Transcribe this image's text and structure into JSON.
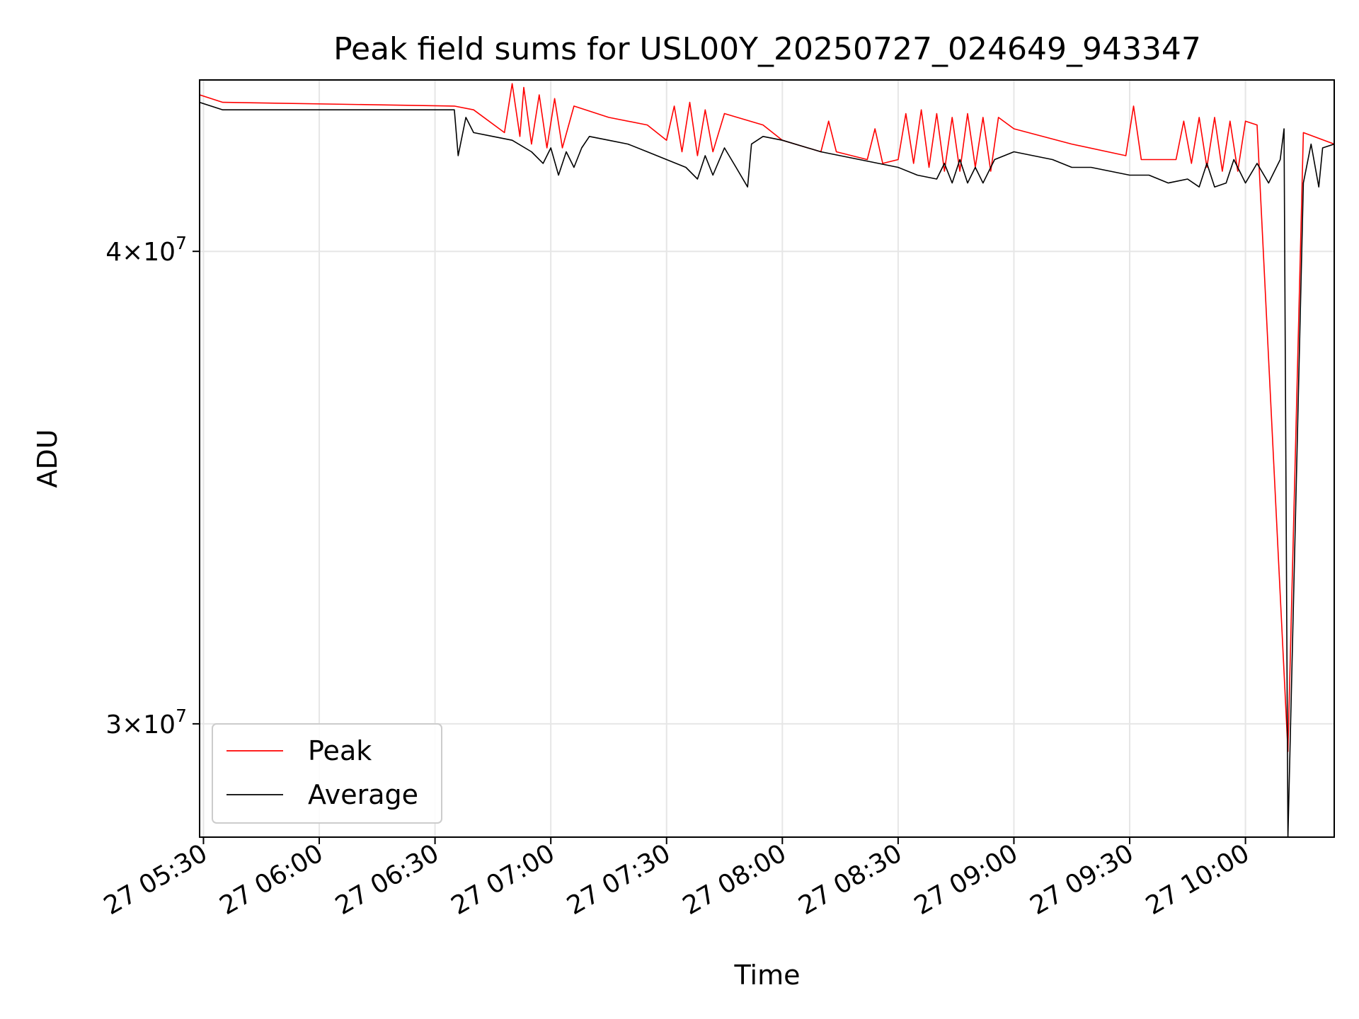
{
  "chart_data": {
    "type": "line",
    "title": "Peak field sums for USL00Y_20250727_024649_943347",
    "xlabel": "Time",
    "ylabel": "ADU",
    "y_scale": "log",
    "xlim": [
      "27 05:29",
      "27 10:23"
    ],
    "ylim": [
      28000000,
      44400000
    ],
    "x_ticks": [
      {
        "time": "27 05:30",
        "label": "27 05:30"
      },
      {
        "time": "27 06:00",
        "label": "27 06:00"
      },
      {
        "time": "27 06:30",
        "label": "27 06:30"
      },
      {
        "time": "27 07:00",
        "label": "27 07:00"
      },
      {
        "time": "27 07:30",
        "label": "27 07:30"
      },
      {
        "time": "27 08:00",
        "label": "27 08:00"
      },
      {
        "time": "27 08:30",
        "label": "27 08:30"
      },
      {
        "time": "27 09:00",
        "label": "27 09:00"
      },
      {
        "time": "27 09:30",
        "label": "27 09:30"
      },
      {
        "time": "27 10:00",
        "label": "27 10:00"
      }
    ],
    "y_ticks": [
      {
        "value": 40000000,
        "mant": "4",
        "exp": "7"
      },
      {
        "value": 30000000,
        "mant": "3",
        "exp": "7"
      }
    ],
    "grid": true,
    "legend_position": "lower-left",
    "legend": [
      {
        "label": "Peak",
        "color": "#ff0000"
      },
      {
        "label": "Average",
        "color": "#000000"
      }
    ],
    "series": [
      {
        "name": "Peak",
        "color": "#ff0000",
        "points": [
          [
            "27 05:29",
            44000000
          ],
          [
            "27 05:35",
            43800000
          ],
          [
            "27 06:35",
            43700000
          ],
          [
            "27 06:40",
            43600000
          ],
          [
            "27 06:48",
            43000000
          ],
          [
            "27 06:50",
            44300000
          ],
          [
            "27 06:52",
            42900000
          ],
          [
            "27 06:53",
            44200000
          ],
          [
            "27 06:55",
            42700000
          ],
          [
            "27 06:57",
            44000000
          ],
          [
            "27 06:59",
            42600000
          ],
          [
            "27 07:01",
            43900000
          ],
          [
            "27 07:03",
            42600000
          ],
          [
            "27 07:06",
            43700000
          ],
          [
            "27 07:15",
            43400000
          ],
          [
            "27 07:25",
            43200000
          ],
          [
            "27 07:30",
            42800000
          ],
          [
            "27 07:32",
            43700000
          ],
          [
            "27 07:34",
            42500000
          ],
          [
            "27 07:36",
            43800000
          ],
          [
            "27 07:38",
            42400000
          ],
          [
            "27 07:40",
            43600000
          ],
          [
            "27 07:42",
            42500000
          ],
          [
            "27 07:45",
            43500000
          ],
          [
            "27 07:55",
            43200000
          ],
          [
            "27 08:00",
            42800000
          ],
          [
            "27 08:10",
            42500000
          ],
          [
            "27 08:12",
            43300000
          ],
          [
            "27 08:14",
            42500000
          ],
          [
            "27 08:22",
            42300000
          ],
          [
            "27 08:24",
            43100000
          ],
          [
            "27 08:26",
            42200000
          ],
          [
            "27 08:30",
            42300000
          ],
          [
            "27 08:32",
            43500000
          ],
          [
            "27 08:34",
            42200000
          ],
          [
            "27 08:36",
            43600000
          ],
          [
            "27 08:38",
            42100000
          ],
          [
            "27 08:40",
            43500000
          ],
          [
            "27 08:42",
            42000000
          ],
          [
            "27 08:44",
            43400000
          ],
          [
            "27 08:46",
            42000000
          ],
          [
            "27 08:48",
            43500000
          ],
          [
            "27 08:50",
            42100000
          ],
          [
            "27 08:52",
            43400000
          ],
          [
            "27 08:54",
            42000000
          ],
          [
            "27 08:56",
            43400000
          ],
          [
            "27 09:00",
            43100000
          ],
          [
            "27 09:15",
            42700000
          ],
          [
            "27 09:29",
            42400000
          ],
          [
            "27 09:31",
            43700000
          ],
          [
            "27 09:33",
            42300000
          ],
          [
            "27 09:42",
            42300000
          ],
          [
            "27 09:44",
            43300000
          ],
          [
            "27 09:46",
            42200000
          ],
          [
            "27 09:48",
            43400000
          ],
          [
            "27 09:50",
            42100000
          ],
          [
            "27 09:52",
            43400000
          ],
          [
            "27 09:54",
            42000000
          ],
          [
            "27 09:56",
            43300000
          ],
          [
            "27 09:58",
            42000000
          ],
          [
            "27 10:00",
            43300000
          ],
          [
            "27 10:03",
            43200000
          ],
          [
            "27 10:11",
            29500000
          ],
          [
            "27 10:15",
            43000000
          ],
          [
            "27 10:23",
            42700000
          ]
        ]
      },
      {
        "name": "Average",
        "color": "#000000",
        "points": [
          [
            "27 05:29",
            43800000
          ],
          [
            "27 05:35",
            43600000
          ],
          [
            "27 06:35",
            43600000
          ],
          [
            "27 06:36",
            42400000
          ],
          [
            "27 06:38",
            43400000
          ],
          [
            "27 06:40",
            43000000
          ],
          [
            "27 06:45",
            42900000
          ],
          [
            "27 06:50",
            42800000
          ],
          [
            "27 06:55",
            42500000
          ],
          [
            "27 06:58",
            42200000
          ],
          [
            "27 07:00",
            42600000
          ],
          [
            "27 07:02",
            41900000
          ],
          [
            "27 07:04",
            42500000
          ],
          [
            "27 07:06",
            42100000
          ],
          [
            "27 07:08",
            42600000
          ],
          [
            "27 07:10",
            42900000
          ],
          [
            "27 07:15",
            42800000
          ],
          [
            "27 07:20",
            42700000
          ],
          [
            "27 07:25",
            42500000
          ],
          [
            "27 07:30",
            42300000
          ],
          [
            "27 07:35",
            42100000
          ],
          [
            "27 07:38",
            41800000
          ],
          [
            "27 07:40",
            42400000
          ],
          [
            "27 07:42",
            41900000
          ],
          [
            "27 07:45",
            42600000
          ],
          [
            "27 07:48",
            42100000
          ],
          [
            "27 07:51",
            41600000
          ],
          [
            "27 07:52",
            42700000
          ],
          [
            "27 07:55",
            42900000
          ],
          [
            "27 08:00",
            42800000
          ],
          [
            "27 08:10",
            42500000
          ],
          [
            "27 08:20",
            42300000
          ],
          [
            "27 08:30",
            42100000
          ],
          [
            "27 08:35",
            41900000
          ],
          [
            "27 08:40",
            41800000
          ],
          [
            "27 08:42",
            42200000
          ],
          [
            "27 08:44",
            41700000
          ],
          [
            "27 08:46",
            42300000
          ],
          [
            "27 08:48",
            41700000
          ],
          [
            "27 08:50",
            42100000
          ],
          [
            "27 08:52",
            41700000
          ],
          [
            "27 08:55",
            42300000
          ],
          [
            "27 09:00",
            42500000
          ],
          [
            "27 09:05",
            42400000
          ],
          [
            "27 09:10",
            42300000
          ],
          [
            "27 09:15",
            42100000
          ],
          [
            "27 09:20",
            42100000
          ],
          [
            "27 09:30",
            41900000
          ],
          [
            "27 09:35",
            41900000
          ],
          [
            "27 09:40",
            41700000
          ],
          [
            "27 09:45",
            41800000
          ],
          [
            "27 09:48",
            41600000
          ],
          [
            "27 09:50",
            42200000
          ],
          [
            "27 09:52",
            41600000
          ],
          [
            "27 09:55",
            41700000
          ],
          [
            "27 09:57",
            42300000
          ],
          [
            "27 10:00",
            41700000
          ],
          [
            "27 10:03",
            42200000
          ],
          [
            "27 10:06",
            41700000
          ],
          [
            "27 10:09",
            42300000
          ],
          [
            "27 10:10",
            43100000
          ],
          [
            "27 10:11",
            28000000
          ],
          [
            "27 10:15",
            41700000
          ],
          [
            "27 10:17",
            42700000
          ],
          [
            "27 10:19",
            41600000
          ],
          [
            "27 10:20",
            42600000
          ],
          [
            "27 10:23",
            42700000
          ]
        ]
      }
    ]
  }
}
